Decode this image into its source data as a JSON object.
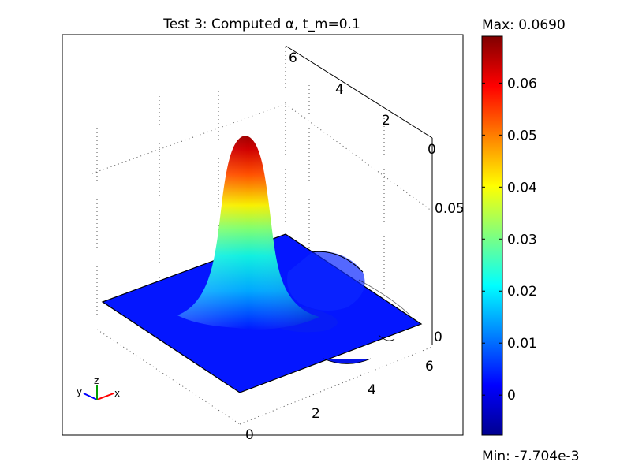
{
  "chart_data": {
    "type": "surface",
    "title": "Test 3:  Computed α, t_m=0.1",
    "x_axis": {
      "range": [
        0,
        6.3
      ],
      "ticks": [
        "2",
        "4",
        "6"
      ]
    },
    "y_axis": {
      "range": [
        0,
        6.3
      ],
      "ticks": [
        "0",
        "2",
        "4",
        "6"
      ]
    },
    "z_axis": {
      "range": [
        -0.007704,
        0.069
      ],
      "ticks": [
        "0",
        "0.05",
        "0"
      ]
    },
    "peak": {
      "x": 1.7,
      "y": 2.0,
      "z": 0.069
    },
    "colorbar": {
      "colormap": "jet",
      "max_label": "Max: 0.0690",
      "min_label": "Min: -7.704e-3",
      "min": -0.007704,
      "max": 0.069,
      "ticks": [
        "0.06",
        "0.05",
        "0.04",
        "0.03",
        "0.02",
        "0.01",
        "0"
      ],
      "tick_values": [
        0.06,
        0.05,
        0.04,
        0.03,
        0.02,
        0.01,
        0
      ]
    },
    "triad": {
      "labels": [
        "y",
        "z",
        "x"
      ],
      "colors": [
        "#0000ff",
        "#00a000",
        "#ff0000"
      ]
    }
  }
}
